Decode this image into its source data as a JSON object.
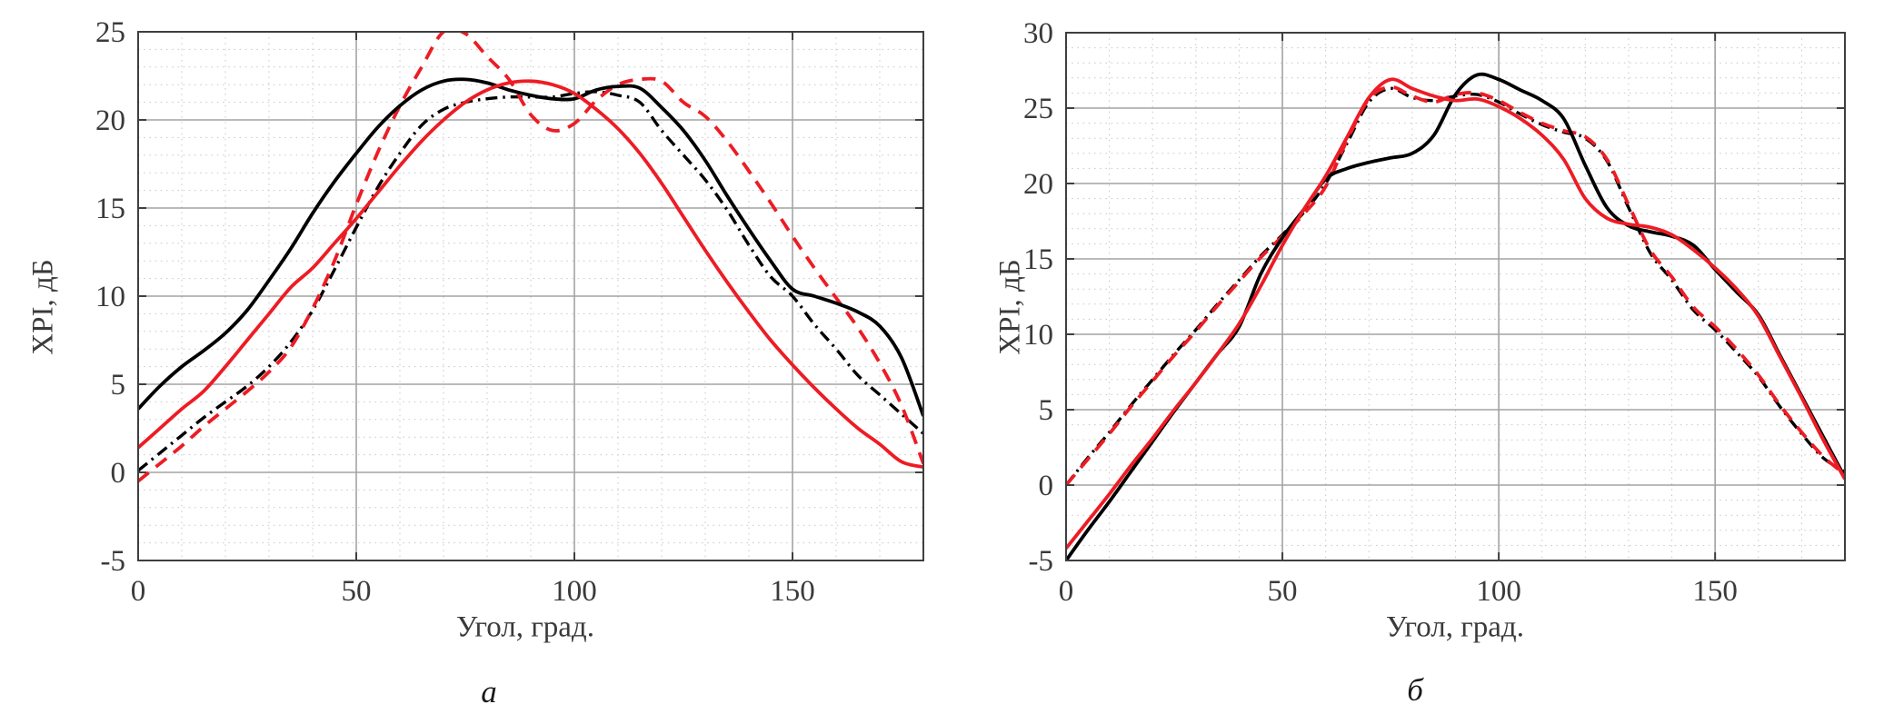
{
  "page": {
    "background": "#ffffff"
  },
  "colors": {
    "series_black": "#000000",
    "series_red": "#ed1c24",
    "grid_major": "#a3a3a3",
    "grid_minor": "#c9c9c9",
    "axis_box": "#3f3f3f",
    "tick_label": "#3a3a3a"
  },
  "chart_data": [
    {
      "id": "a",
      "type": "line",
      "title": "",
      "caption": "а",
      "xlabel": "Угол, град.",
      "ylabel": "XPI, дБ",
      "xlim": [
        0,
        180
      ],
      "ylim": [
        -5,
        25
      ],
      "xticks": [
        0,
        50,
        100,
        150
      ],
      "yticks": [
        -5,
        0,
        5,
        10,
        15,
        20,
        25
      ],
      "minor_x_step": 10,
      "minor_y_step": 1,
      "grid": "on",
      "legend_position": "none",
      "x": [
        0,
        5,
        10,
        15,
        20,
        25,
        30,
        35,
        40,
        45,
        50,
        55,
        60,
        65,
        70,
        75,
        80,
        85,
        90,
        95,
        100,
        105,
        110,
        115,
        120,
        125,
        130,
        135,
        140,
        145,
        150,
        155,
        160,
        165,
        170,
        175,
        180
      ],
      "series": [
        {
          "name": "black-solid",
          "color": "#000000",
          "style": "solid",
          "width": 3.8,
          "values": [
            3.6,
            4.9,
            6.0,
            6.9,
            7.9,
            9.2,
            10.9,
            12.7,
            14.7,
            16.5,
            18.1,
            19.6,
            20.8,
            21.7,
            22.2,
            22.3,
            22.1,
            21.7,
            21.4,
            21.2,
            21.2,
            21.7,
            21.9,
            21.8,
            20.7,
            19.4,
            17.7,
            15.7,
            13.8,
            12.0,
            10.4,
            10.0,
            9.6,
            9.1,
            8.3,
            6.5,
            3.2
          ]
        },
        {
          "name": "black-dash-dot",
          "color": "#000000",
          "style": "dash-dot",
          "width": 3.4,
          "values": [
            0.1,
            1.1,
            2.1,
            3.1,
            4.0,
            4.9,
            6.0,
            7.4,
            9.2,
            11.5,
            13.9,
            16.2,
            18.1,
            19.7,
            20.6,
            21.0,
            21.2,
            21.3,
            21.3,
            21.3,
            21.5,
            21.6,
            21.4,
            21.0,
            19.4,
            18.0,
            16.6,
            14.9,
            12.9,
            11.1,
            10.0,
            8.4,
            7.0,
            5.5,
            4.4,
            3.3,
            2.2
          ]
        },
        {
          "name": "red-solid",
          "color": "#ed1c24",
          "style": "solid",
          "width": 3.8,
          "values": [
            1.4,
            2.5,
            3.6,
            4.6,
            6.0,
            7.5,
            9.0,
            10.5,
            11.6,
            13.0,
            14.4,
            15.9,
            17.4,
            18.8,
            20.0,
            21.0,
            21.7,
            22.1,
            22.2,
            22.0,
            21.5,
            20.6,
            19.5,
            18.1,
            16.4,
            14.5,
            12.6,
            10.8,
            9.1,
            7.5,
            6.1,
            4.8,
            3.6,
            2.5,
            1.6,
            0.6,
            0.3
          ]
        },
        {
          "name": "red-dashed",
          "color": "#ed1c24",
          "style": "dashed",
          "width": 3.8,
          "values": [
            -0.5,
            0.5,
            1.5,
            2.6,
            3.6,
            4.6,
            5.7,
            7.1,
            9.3,
            12.0,
            15.2,
            18.2,
            20.8,
            23.0,
            25.0,
            24.9,
            23.6,
            22.3,
            20.3,
            19.4,
            19.8,
            21.1,
            22.0,
            22.3,
            22.2,
            21.0,
            20.2,
            18.8,
            17.1,
            15.3,
            13.4,
            11.6,
            9.9,
            8.2,
            6.2,
            3.8,
            0.5
          ]
        }
      ]
    },
    {
      "id": "b",
      "type": "line",
      "title": "",
      "caption": "б",
      "xlabel": "Угол, град.",
      "ylabel": "XPI, дБ",
      "xlim": [
        0,
        180
      ],
      "ylim": [
        -5,
        30
      ],
      "xticks": [
        0,
        50,
        100,
        150
      ],
      "yticks": [
        -5,
        0,
        5,
        10,
        15,
        20,
        25,
        30
      ],
      "minor_x_step": 10,
      "minor_y_step": 1,
      "grid": "on",
      "legend_position": "none",
      "x": [
        0,
        5,
        10,
        15,
        20,
        25,
        30,
        35,
        40,
        45,
        50,
        55,
        60,
        65,
        70,
        75,
        80,
        85,
        90,
        95,
        100,
        105,
        110,
        115,
        120,
        125,
        130,
        135,
        140,
        145,
        150,
        155,
        160,
        165,
        170,
        175,
        180
      ],
      "series": [
        {
          "name": "black-solid",
          "color": "#000000",
          "style": "solid",
          "width": 3.8,
          "values": [
            -5.0,
            -3.0,
            -1.1,
            0.9,
            2.9,
            4.9,
            6.8,
            8.7,
            10.5,
            14.0,
            16.4,
            18.3,
            20.3,
            21.0,
            21.4,
            21.7,
            22.0,
            23.2,
            25.9,
            27.2,
            26.9,
            26.2,
            25.5,
            24.3,
            21.2,
            18.4,
            17.2,
            16.8,
            16.5,
            15.9,
            14.3,
            12.8,
            11.3,
            8.6,
            5.9,
            3.2,
            0.5
          ]
        },
        {
          "name": "black-dash-dot",
          "color": "#000000",
          "style": "dash-dot",
          "width": 3.4,
          "values": [
            0.0,
            1.8,
            3.5,
            5.3,
            7.0,
            8.7,
            10.3,
            12.0,
            13.6,
            15.2,
            16.6,
            18.1,
            20.0,
            22.7,
            25.4,
            26.3,
            25.7,
            25.5,
            25.8,
            25.9,
            25.4,
            24.6,
            23.9,
            23.4,
            23.0,
            21.5,
            18.4,
            15.4,
            13.6,
            11.6,
            10.3,
            8.8,
            7.2,
            5.2,
            3.4,
            1.8,
            0.9
          ]
        },
        {
          "name": "red-solid",
          "color": "#ed1c24",
          "style": "solid",
          "width": 3.8,
          "values": [
            -4.2,
            -2.4,
            -0.6,
            1.3,
            3.1,
            5.0,
            6.8,
            8.7,
            10.7,
            13.2,
            15.9,
            18.3,
            20.5,
            23.1,
            25.7,
            26.9,
            26.3,
            25.8,
            25.5,
            25.6,
            25.1,
            24.3,
            23.2,
            21.6,
            19.0,
            17.7,
            17.3,
            17.1,
            16.6,
            15.6,
            14.4,
            13.0,
            11.2,
            8.5,
            5.8,
            3.0,
            0.4
          ]
        },
        {
          "name": "red-dashed",
          "color": "#ed1c24",
          "style": "dashed",
          "width": 3.8,
          "values": [
            0.0,
            1.7,
            3.4,
            5.2,
            6.9,
            8.6,
            10.2,
            11.9,
            13.5,
            15.1,
            16.5,
            18.0,
            19.8,
            22.9,
            25.6,
            26.4,
            25.8,
            25.4,
            25.9,
            26.0,
            25.5,
            24.7,
            24.0,
            23.5,
            23.1,
            21.6,
            18.6,
            15.6,
            13.8,
            11.8,
            10.5,
            9.0,
            7.3,
            5.3,
            3.5,
            1.9,
            0.7
          ]
        }
      ]
    }
  ]
}
